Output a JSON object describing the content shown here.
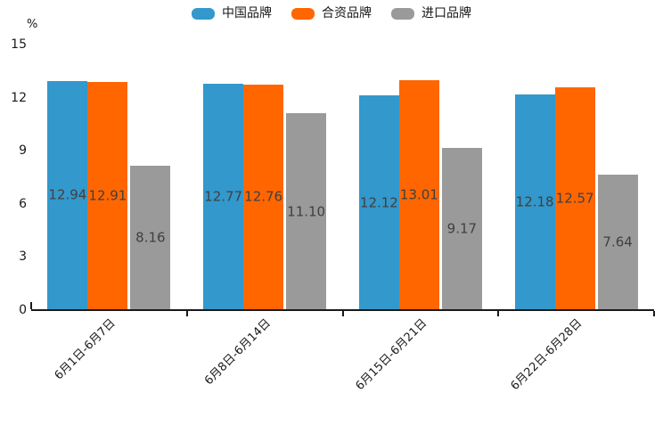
{
  "chart_data": {
    "type": "bar",
    "title": "",
    "unit_label": "%",
    "categories": [
      "6月1日-6月7日",
      "6月8日-6月14日",
      "6月15日-6月21日",
      "6月22日-6月28日"
    ],
    "series": [
      {
        "key": "china-brand",
        "name": "中国品牌",
        "color": "#3398CC",
        "values": [
          12.94,
          12.77,
          12.12,
          12.18
        ]
      },
      {
        "key": "joint-venture-brand",
        "name": "合资品牌",
        "color": "#FF6600",
        "values": [
          12.91,
          12.76,
          13.01,
          12.57
        ]
      },
      {
        "key": "imported-brand",
        "name": "进口品牌",
        "color": "#9A9A9A",
        "values": [
          8.16,
          11.1,
          9.17,
          7.64
        ]
      }
    ],
    "ylim": [
      0,
      15
    ],
    "yticks": [
      0,
      3,
      6,
      9,
      12,
      15
    ],
    "grid": false,
    "legend_position": "top",
    "value_labels": "centered-in-bar",
    "axis_color": "#1a1a1a",
    "value_label_color": "#404040"
  }
}
